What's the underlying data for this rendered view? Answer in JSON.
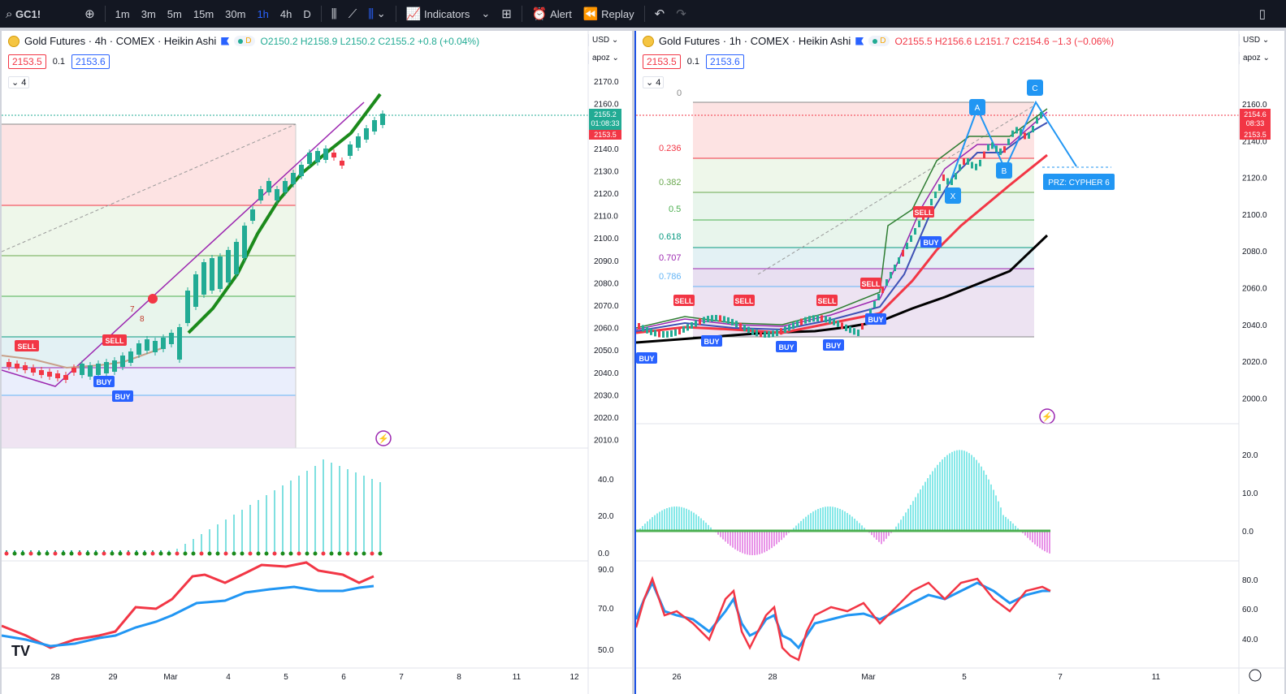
{
  "toolbar": {
    "symbol": "GC1!",
    "intervals": [
      "1m",
      "3m",
      "5m",
      "15m",
      "30m",
      "1h",
      "4h",
      "D"
    ],
    "active_interval": "1h",
    "indicators_label": "Indicators",
    "alert_label": "Alert",
    "replay_label": "Replay"
  },
  "left_chart": {
    "title": "Gold Futures · 4h · COMEX · Heikin Ashi",
    "status_letter": "D",
    "ohlc": {
      "o": "O2150.2",
      "h": "H2158.9",
      "l": "L2150.2",
      "c": "C2155.2",
      "chg": "+0.8 (+0.04%)"
    },
    "sell_price": "2153.5",
    "spread": "0.1",
    "buy_price": "2153.6",
    "collapse_count": "4",
    "currency": "USD",
    "axis_mode": "apoz",
    "price_ticks": [
      "2170.0",
      "2160.0",
      "2150.0",
      "2140.0",
      "2130.0",
      "2120.0",
      "2110.0",
      "2100.0",
      "2090.0",
      "2080.0",
      "2070.0",
      "2060.0",
      "2050.0",
      "2040.0",
      "2030.0",
      "2020.0",
      "2010.0"
    ],
    "last_price": "2155.2",
    "countdown": "01:08:33",
    "bid_label": "2153.5",
    "osc_ticks": [
      "40.0",
      "20.0",
      "0.0"
    ],
    "rsi_ticks": [
      "90.0",
      "70.0",
      "50.0"
    ],
    "time_ticks": [
      "28",
      "29",
      "Mar",
      "4",
      "5",
      "6",
      "7",
      "8",
      "11",
      "12"
    ],
    "signals": [
      "SELL",
      "SELL",
      "BUY",
      "BUY"
    ],
    "markers": [
      "7",
      "8"
    ]
  },
  "right_chart": {
    "title": "Gold Futures · 1h · COMEX · Heikin Ashi",
    "status_letter": "D",
    "ohlc": {
      "o": "O2155.5",
      "h": "H2156.6",
      "l": "L2151.7",
      "c": "C2154.6",
      "chg": "−1.3 (−0.06%)"
    },
    "sell_price": "2153.5",
    "spread": "0.1",
    "buy_price": "2153.6",
    "collapse_count": "4",
    "currency": "USD",
    "axis_mode": "apoz",
    "price_ticks": [
      "2160.0",
      "2140.0",
      "2120.0",
      "2100.0",
      "2080.0",
      "2060.0",
      "2040.0",
      "2020.0",
      "2000.0"
    ],
    "last_price": "2154.6",
    "countdown": "08:33",
    "bid_label": "2153.5",
    "fib_labels": [
      "0",
      "0.236",
      "0.382",
      "0.5",
      "0.618",
      "0.707",
      "0.786"
    ],
    "pattern_points": [
      "A",
      "B",
      "C",
      "X"
    ],
    "prz_label": "PRZ: CYPHER 6",
    "osc_ticks": [
      "20.0",
      "10.0",
      "0.0"
    ],
    "rsi_ticks": [
      "80.0",
      "60.0",
      "40.0"
    ],
    "time_ticks": [
      "26",
      "28",
      "Mar",
      "5",
      "7",
      "11"
    ],
    "signals_sell": [
      "SELL",
      "SELL",
      "SELL",
      "SELL",
      "SELL"
    ],
    "signals_buy": [
      "BUY",
      "BUY",
      "BUY",
      "BUY",
      "BUY",
      "BUY"
    ]
  },
  "colors": {
    "up": "#22ab94",
    "down": "#f23645",
    "accent": "#2962ff",
    "toolbar_bg": "#131722"
  }
}
